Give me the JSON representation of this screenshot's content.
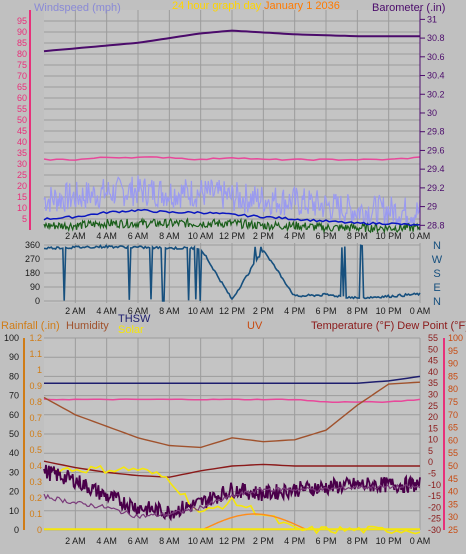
{
  "colors": {
    "wind_axis": "#e8307a",
    "wind_title": "#8a8ad6",
    "title": "#ffd400",
    "baro": "#4b0b6b",
    "gust": "#9a9af0",
    "avg": "#0a16c0",
    "low": "#1a5e1a",
    "dir": "#17507e",
    "rain": "#d07c16",
    "humidity": "#a0522d",
    "solar": "#f5e60a",
    "uv": "#c84a10",
    "temp": "#8b1a1a",
    "dew": "#4a004a",
    "thsw": "#1e1e6e",
    "grid": "#9c9c9c",
    "panel": "#c4c4c4"
  },
  "top": {
    "wind_title": "Windspeed (mph)",
    "graph_title": "24 hour graph day",
    "date_label": "January 1 2036",
    "baro_title": "Barometer (.in)",
    "wind_ticks": [
      "95",
      "90",
      "85",
      "80",
      "75",
      "70",
      "65",
      "60",
      "55",
      "50",
      "45",
      "40",
      "35",
      "30",
      "25",
      "20",
      "15",
      "10",
      "5"
    ],
    "baro_ticks": [
      "31",
      "30.8",
      "30.6",
      "30.4",
      "30.2",
      "30",
      "29.8",
      "29.6",
      "29.4",
      "29.2",
      "29",
      "28.8"
    ],
    "x_ticks": [
      "2 AM",
      "4 AM",
      "6 AM",
      "8 AM",
      "10 AM",
      "12 PM",
      "2 PM",
      "4 PM",
      "6 PM",
      "8 PM",
      "10 PM",
      "0 AM"
    ]
  },
  "mid": {
    "dir_ticks": [
      "360",
      "270",
      "180",
      "90",
      "0"
    ],
    "dir_labels": [
      "N",
      "W",
      "S",
      "E",
      "N"
    ]
  },
  "bottom": {
    "rain_title": "Rainfall (.in)",
    "humidity_title": "Humidity",
    "thsw_title": "THSW",
    "solar_title": "Solar",
    "uv_title": "UV",
    "temp_title": "Temperature (°F) Dew Point (°F)",
    "left_ticks": [
      "100",
      "90",
      "80",
      "70",
      "60",
      "50",
      "40",
      "30",
      "20",
      "10",
      "0"
    ],
    "rain_ticks": [
      "1.2",
      "1.1",
      "1",
      "0.9",
      "0.8",
      "0.7",
      "0.6",
      "0.5",
      "0.4",
      "0.3",
      "0.2",
      "0.1",
      "0"
    ],
    "temp_ticks": [
      "55",
      "50",
      "45",
      "40",
      "35",
      "30",
      "25",
      "20",
      "15",
      "10",
      "5",
      "0",
      "-5",
      "-10",
      "-15",
      "-20",
      "-25",
      "-30"
    ],
    "uv_ticks": [
      "100",
      "95",
      "90",
      "85",
      "80",
      "75",
      "70",
      "65",
      "60",
      "55",
      "50",
      "45",
      "40",
      "35",
      "30",
      "25"
    ]
  },
  "chart_data": [
    {
      "type": "line",
      "title": "24 hour graph day",
      "x": [
        "0 AM",
        "2 AM",
        "4 AM",
        "6 AM",
        "8 AM",
        "10 AM",
        "12 PM",
        "2 PM",
        "4 PM",
        "6 PM",
        "8 PM",
        "10 PM",
        "0 AM"
      ],
      "xlabel": "",
      "ylabel": "Windspeed (mph)",
      "ylim": [
        0,
        100
      ],
      "y2label": "Barometer (.in)",
      "y2lim": [
        28.75,
        31.1
      ],
      "grid": true,
      "series": [
        {
          "axis": "barometer",
          "values": [
            30.66,
            30.69,
            30.72,
            30.75,
            30.8,
            30.85,
            30.88,
            30.86,
            30.84,
            30.83,
            30.82,
            30.82,
            30.82
          ]
        },
        {
          "axis": "wind",
          "values": [
            32,
            32,
            33,
            33,
            33,
            32,
            33,
            32,
            32,
            32,
            32,
            32,
            33
          ]
        },
        {
          "axis": "wind",
          "values": [
            14,
            15,
            17,
            18,
            17,
            17,
            15,
            14,
            13,
            11,
            9,
            9,
            8
          ]
        },
        {
          "axis": "wind",
          "values": [
            5,
            6,
            8,
            9,
            8,
            8,
            7,
            6,
            5,
            4,
            3,
            3,
            2
          ]
        },
        {
          "axis": "wind",
          "values": [
            2,
            2,
            3,
            3,
            3,
            3,
            3,
            2,
            2,
            1,
            1,
            1,
            1
          ]
        }
      ]
    },
    {
      "type": "line",
      "title": "",
      "x": [
        "0 AM",
        "2 AM",
        "4 AM",
        "6 AM",
        "8 AM",
        "10 AM",
        "12 PM",
        "2 PM",
        "4 PM",
        "6 PM",
        "8 PM",
        "10 PM",
        "0 AM"
      ],
      "ylabel": "",
      "ylim": [
        0,
        360
      ],
      "grid": true,
      "series": [
        {
          "values": [
            340,
            345,
            350,
            345,
            340,
            340,
            10,
            330,
            30,
            40,
            20,
            30,
            45
          ]
        }
      ]
    },
    {
      "type": "line",
      "title": "",
      "x": [
        "0 AM",
        "2 AM",
        "4 AM",
        "6 AM",
        "8 AM",
        "10 AM",
        "12 PM",
        "2 PM",
        "4 PM",
        "6 PM",
        "8 PM",
        "10 PM",
        "0 AM"
      ],
      "ylabel": "Humidity",
      "ylim": [
        0,
        100
      ],
      "y2label": "Temperature (°F) Dew Point (°F)",
      "y2lim": [
        -30,
        55
      ],
      "y3label": "UV",
      "y3lim": [
        25,
        100
      ],
      "grid": true,
      "series": [
        {
          "name": "THSW",
          "axis": "temp",
          "values": [
            35,
            35,
            35,
            35,
            35,
            35,
            35,
            35,
            35,
            35,
            35,
            36,
            38
          ]
        },
        {
          "name": "UV",
          "axis": "uv",
          "values": [
            76,
            76,
            76,
            76,
            76,
            76,
            76,
            76,
            76,
            75,
            75,
            75,
            76
          ]
        },
        {
          "name": "Humidity",
          "axis": "humidity",
          "values": [
            69,
            60,
            54,
            48,
            44,
            43,
            48,
            46,
            47,
            52,
            65,
            76,
            77
          ]
        },
        {
          "name": "Rainfall (.in)",
          "axis": "rain",
          "values": [
            0.43,
            0.39,
            0.36,
            0.34,
            0.33,
            0.37,
            0.4,
            0.41,
            0.4,
            0.4,
            0.4,
            0.4,
            0.4
          ]
        },
        {
          "name": "Solar",
          "axis": "rain",
          "values": [
            0.38,
            0.38,
            0.38,
            0.38,
            0.32,
            0.1,
            0.18,
            0.1,
            0.0,
            0.0,
            0.0,
            0.0,
            0.0
          ]
        },
        {
          "name": "Temperature (°F)",
          "axis": "temp",
          "values": [
            -15,
            -18,
            -20,
            -24,
            -23,
            -20,
            -15,
            -12,
            -12,
            -12,
            -11,
            -11,
            -11
          ]
        },
        {
          "name": "Dew Point (°F)",
          "axis": "temp",
          "values": [
            -4,
            -8,
            -15,
            -20,
            -22,
            -18,
            -12,
            -14,
            -12,
            -11,
            -10,
            -10,
            -10
          ]
        }
      ]
    }
  ]
}
